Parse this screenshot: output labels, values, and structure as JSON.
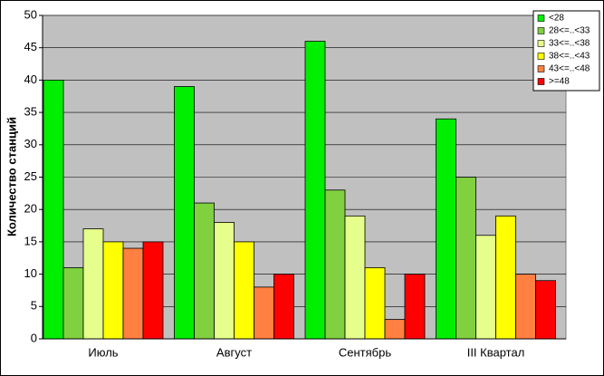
{
  "chart_data": {
    "type": "bar",
    "y_label": "Количество станций",
    "categories": [
      "Июль",
      "Август",
      "Сентябрь",
      "III Квартал"
    ],
    "series": [
      {
        "name": "<28",
        "color": "#00ee00",
        "values": [
          40,
          39,
          46,
          34
        ]
      },
      {
        "name": "28<=..<33",
        "color": "#80d040",
        "values": [
          11,
          21,
          23,
          25
        ]
      },
      {
        "name": "33<=..<38",
        "color": "#e6ff8c",
        "values": [
          17,
          18,
          19,
          16
        ]
      },
      {
        "name": "38<=..<43",
        "color": "#ffff00",
        "values": [
          15,
          15,
          11,
          19
        ]
      },
      {
        "name": "43<=..<48",
        "color": "#ff8040",
        "values": [
          14,
          8,
          3,
          10
        ]
      },
      {
        "name": ">=48",
        "color": "#ff0000",
        "values": [
          15,
          10,
          10,
          9
        ]
      }
    ],
    "ylim": [
      0,
      50
    ],
    "yticks": [
      0,
      5,
      10,
      15,
      20,
      25,
      30,
      35,
      40,
      45,
      50
    ],
    "grid": true,
    "legend": "top-right"
  }
}
